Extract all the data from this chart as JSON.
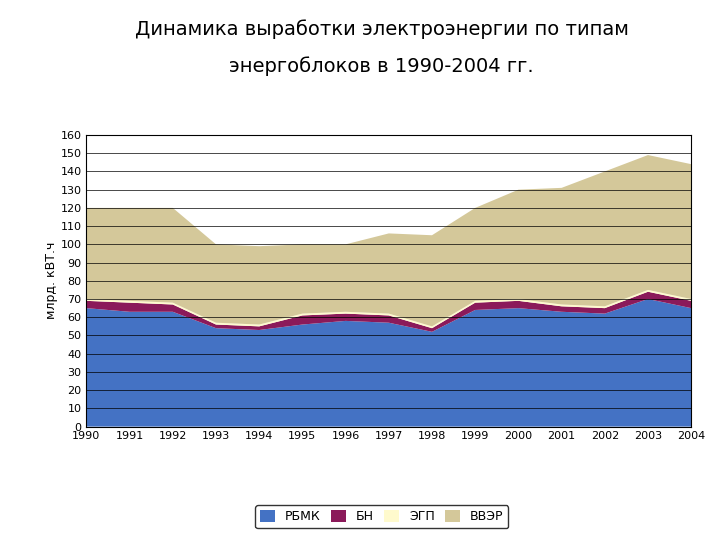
{
  "title_line1": "Динамика выработки электроэнергии по типам",
  "title_line2": "энергоблоков в 1990-2004 гг.",
  "ylabel": "млрд. кВТ.ч",
  "years": [
    1990,
    1991,
    1992,
    1993,
    1994,
    1995,
    1996,
    1997,
    1998,
    1999,
    2000,
    2001,
    2002,
    2003,
    2004
  ],
  "RBMK": [
    65,
    63,
    63,
    54,
    53,
    56,
    58,
    57,
    52,
    64,
    65,
    63,
    62,
    70,
    65
  ],
  "BN": [
    4,
    5,
    4,
    2,
    2,
    5,
    4,
    4,
    2,
    4,
    4,
    3,
    3,
    4,
    4
  ],
  "EGP": [
    1,
    1,
    1,
    1,
    1,
    1,
    1,
    1,
    1,
    1,
    1,
    1,
    1,
    1,
    1
  ],
  "VVER": [
    50,
    51,
    52,
    43,
    43,
    38,
    37,
    44,
    50,
    51,
    60,
    64,
    74,
    74,
    74
  ],
  "color_RBMK": "#4472C4",
  "color_BN": "#8B1A5A",
  "color_EGP": "#FFFACD",
  "color_VVER": "#D4C89A",
  "legend_labels": [
    "РБМК",
    "БН",
    "ЭГП",
    "ВВЭР"
  ],
  "ylim": [
    0,
    160
  ],
  "yticks": [
    0,
    10,
    20,
    30,
    40,
    50,
    60,
    70,
    80,
    90,
    100,
    110,
    120,
    130,
    140,
    150,
    160
  ],
  "background_color": "#FFFFFF",
  "title_fontsize": 14,
  "axis_fontsize": 8,
  "legend_fontsize": 9
}
